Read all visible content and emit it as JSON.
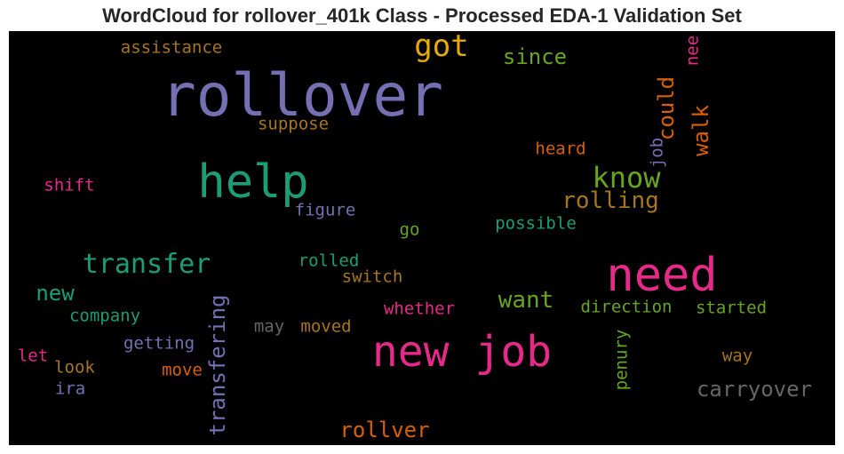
{
  "chart_data": {
    "type": "wordcloud",
    "title": "WordCloud for rollover_401k Class - Processed EDA-1 Validation Set",
    "background": "#000000",
    "words": [
      {
        "text": "rollover",
        "color": "#7570b3"
      },
      {
        "text": "need",
        "color": "#e7298a"
      },
      {
        "text": "new job",
        "color": "#e7298a"
      },
      {
        "text": "help",
        "color": "#1b9e77"
      },
      {
        "text": "got",
        "color": "#e6ab02"
      },
      {
        "text": "know",
        "color": "#66a61e"
      },
      {
        "text": "transfer",
        "color": "#1b9e77"
      },
      {
        "text": "transfering",
        "color": "#7570b3"
      },
      {
        "text": "rolling",
        "color": "#a6761d"
      },
      {
        "text": "carryover",
        "color": "#666666"
      },
      {
        "text": "walk",
        "color": "#d95f02"
      },
      {
        "text": "could",
        "color": "#d95f02"
      },
      {
        "text": "since",
        "color": "#66a61e"
      },
      {
        "text": "want",
        "color": "#66a61e"
      },
      {
        "text": "rollver",
        "color": "#d95f02"
      },
      {
        "text": "new",
        "color": "#1b9e77"
      },
      {
        "text": "assistance",
        "color": "#a6761d"
      },
      {
        "text": "suppose",
        "color": "#a6761d"
      },
      {
        "text": "heard",
        "color": "#d95f02"
      },
      {
        "text": "job",
        "color": "#7570b3"
      },
      {
        "text": "nee",
        "color": "#e7298a"
      },
      {
        "text": "shift",
        "color": "#e7298a"
      },
      {
        "text": "figure",
        "color": "#7570b3"
      },
      {
        "text": "go",
        "color": "#66a61e"
      },
      {
        "text": "possible",
        "color": "#1b9e77"
      },
      {
        "text": "rolled",
        "color": "#1b9e77"
      },
      {
        "text": "switch",
        "color": "#a6761d"
      },
      {
        "text": "whether",
        "color": "#e7298a"
      },
      {
        "text": "direction",
        "color": "#66a61e"
      },
      {
        "text": "started",
        "color": "#66a61e"
      },
      {
        "text": "company",
        "color": "#1b9e77"
      },
      {
        "text": "may",
        "color": "#666666"
      },
      {
        "text": "moved",
        "color": "#a6761d"
      },
      {
        "text": "getting",
        "color": "#7570b3"
      },
      {
        "text": "let",
        "color": "#e7298a"
      },
      {
        "text": "look",
        "color": "#a6761d"
      },
      {
        "text": "move",
        "color": "#d95f02"
      },
      {
        "text": "ira",
        "color": "#7570b3"
      },
      {
        "text": "penury",
        "color": "#66a61e"
      },
      {
        "text": "way",
        "color": "#a6761d"
      }
    ]
  }
}
